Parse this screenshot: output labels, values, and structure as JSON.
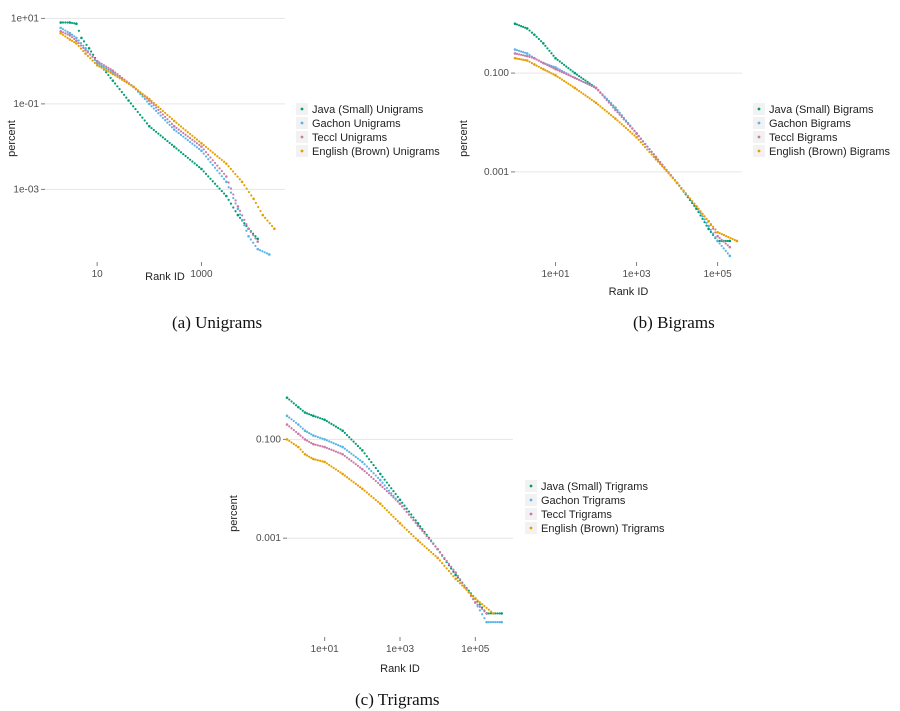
{
  "chart_data": [
    {
      "type": "scatter",
      "caption": "(a) Unigrams",
      "xlabel": "Rank ID",
      "ylabel": "percent",
      "x_scale": "log",
      "y_scale": "log",
      "xlim": [
        1,
        40000
      ],
      "ylim": [
        2e-05,
        12
      ],
      "x_ticks": [
        {
          "v": 10,
          "label": "10"
        },
        {
          "v": 1000,
          "label": "1000"
        }
      ],
      "y_ticks": [
        {
          "v": 10,
          "label": "1e+01"
        },
        {
          "v": 0.1,
          "label": "1e-01"
        },
        {
          "v": 0.001,
          "label": "1e-03"
        }
      ],
      "grid": true,
      "legend_position": "right",
      "series": [
        {
          "name": "Java (Small) Unigrams",
          "color": "#009E73",
          "points": [
            [
              2,
              8
            ],
            [
              3,
              8
            ],
            [
              4,
              7.5
            ],
            [
              5,
              3.5
            ],
            [
              7,
              2
            ],
            [
              10,
              1
            ],
            [
              20,
              0.35
            ],
            [
              40,
              0.12
            ],
            [
              100,
              0.03
            ],
            [
              300,
              0.01
            ],
            [
              1000,
              0.003
            ],
            [
              3000,
              0.0007
            ],
            [
              5000,
              0.00025
            ],
            [
              8000,
              0.00012
            ],
            [
              12000,
              7e-05
            ]
          ]
        },
        {
          "name": "Gachon Unigrams",
          "color": "#56B4E9",
          "points": [
            [
              2,
              6
            ],
            [
              3,
              4.5
            ],
            [
              4,
              3.5
            ],
            [
              6,
              2
            ],
            [
              10,
              0.9
            ],
            [
              20,
              0.55
            ],
            [
              50,
              0.25
            ],
            [
              100,
              0.1
            ],
            [
              300,
              0.025
            ],
            [
              1000,
              0.008
            ],
            [
              3000,
              0.0015
            ],
            [
              5000,
              0.00035
            ],
            [
              8000,
              8e-05
            ],
            [
              12000,
              4e-05
            ],
            [
              20000,
              3e-05
            ]
          ]
        },
        {
          "name": "Teccl Unigrams",
          "color": "#CC79A7",
          "points": [
            [
              2,
              5
            ],
            [
              3,
              4
            ],
            [
              4,
              3
            ],
            [
              6,
              1.8
            ],
            [
              10,
              1
            ],
            [
              20,
              0.6
            ],
            [
              50,
              0.25
            ],
            [
              100,
              0.12
            ],
            [
              300,
              0.03
            ],
            [
              1000,
              0.01
            ],
            [
              3000,
              0.002
            ],
            [
              5000,
              0.0004
            ],
            [
              8000,
              0.00012
            ],
            [
              12000,
              6e-05
            ]
          ]
        },
        {
          "name": "English (Brown) Unigrams",
          "color": "#E69F00",
          "points": [
            [
              2,
              4.5
            ],
            [
              3,
              3.2
            ],
            [
              4,
              2.6
            ],
            [
              6,
              1.5
            ],
            [
              10,
              0.8
            ],
            [
              20,
              0.5
            ],
            [
              50,
              0.25
            ],
            [
              100,
              0.13
            ],
            [
              300,
              0.04
            ],
            [
              1000,
              0.012
            ],
            [
              3000,
              0.004
            ],
            [
              6000,
              0.0015
            ],
            [
              10000,
              0.0006
            ],
            [
              15000,
              0.00025
            ],
            [
              25000,
              0.00012
            ]
          ]
        }
      ]
    },
    {
      "type": "scatter",
      "caption": "(b) Bigrams",
      "xlabel": "Rank ID",
      "ylabel": "percent",
      "x_scale": "log",
      "y_scale": "log",
      "xlim": [
        1,
        400000
      ],
      "ylim": [
        1.5e-05,
        1.5
      ],
      "x_ticks": [
        {
          "v": 10,
          "label": "1e+01"
        },
        {
          "v": 1000,
          "label": "1e+03"
        },
        {
          "v": 100000,
          "label": "1e+05"
        }
      ],
      "y_ticks": [
        {
          "v": 0.1,
          "label": "0.100"
        },
        {
          "v": 0.001,
          "label": "0.001"
        }
      ],
      "grid": true,
      "legend_position": "right",
      "series": [
        {
          "name": "Java (Small) Bigrams",
          "color": "#009E73",
          "points": [
            [
              1,
              1
            ],
            [
              2,
              0.8
            ],
            [
              3,
              0.6
            ],
            [
              5,
              0.4
            ],
            [
              10,
              0.2
            ],
            [
              30,
              0.1
            ],
            [
              100,
              0.05
            ],
            [
              300,
              0.02
            ],
            [
              1000,
              0.006
            ],
            [
              3000,
              0.002
            ],
            [
              10000,
              0.0006
            ],
            [
              30000,
              0.00018
            ],
            [
              60000,
              7e-05
            ],
            [
              100000,
              4e-05
            ],
            [
              200000,
              4e-05
            ]
          ]
        },
        {
          "name": "Gachon Bigrams",
          "color": "#56B4E9",
          "points": [
            [
              1,
              0.3
            ],
            [
              2,
              0.25
            ],
            [
              3,
              0.2
            ],
            [
              5,
              0.16
            ],
            [
              10,
              0.13
            ],
            [
              30,
              0.08
            ],
            [
              100,
              0.05
            ],
            [
              300,
              0.02
            ],
            [
              1000,
              0.006
            ],
            [
              3000,
              0.002
            ],
            [
              10000,
              0.0006
            ],
            [
              30000,
              0.0002
            ],
            [
              60000,
              8e-05
            ],
            [
              100000,
              4e-05
            ],
            [
              200000,
              2e-05
            ]
          ]
        },
        {
          "name": "Teccl Bigrams",
          "color": "#CC79A7",
          "points": [
            [
              1,
              0.25
            ],
            [
              2,
              0.22
            ],
            [
              3,
              0.2
            ],
            [
              5,
              0.16
            ],
            [
              10,
              0.12
            ],
            [
              30,
              0.08
            ],
            [
              100,
              0.05
            ],
            [
              300,
              0.018
            ],
            [
              1000,
              0.006
            ],
            [
              3000,
              0.002
            ],
            [
              10000,
              0.0006
            ],
            [
              30000,
              0.0002
            ],
            [
              60000,
              0.0001
            ],
            [
              100000,
              5e-05
            ],
            [
              200000,
              3e-05
            ]
          ]
        },
        {
          "name": "English (Brown) Bigrams",
          "color": "#E69F00",
          "points": [
            [
              1,
              0.2
            ],
            [
              2,
              0.18
            ],
            [
              3,
              0.15
            ],
            [
              5,
              0.12
            ],
            [
              10,
              0.09
            ],
            [
              30,
              0.05
            ],
            [
              100,
              0.025
            ],
            [
              300,
              0.012
            ],
            [
              1000,
              0.005
            ],
            [
              3000,
              0.0018
            ],
            [
              10000,
              0.0006
            ],
            [
              30000,
              0.0002
            ],
            [
              60000,
              0.0001
            ],
            [
              100000,
              6e-05
            ],
            [
              300000,
              4e-05
            ]
          ]
        }
      ]
    },
    {
      "type": "scatter",
      "caption": "(c) Trigrams",
      "xlabel": "Rank ID",
      "ylabel": "percent",
      "x_scale": "log",
      "y_scale": "log",
      "xlim": [
        1,
        1000000
      ],
      "ylim": [
        1e-05,
        1
      ],
      "x_ticks": [
        {
          "v": 10,
          "label": "1e+01"
        },
        {
          "v": 1000,
          "label": "1e+03"
        },
        {
          "v": 100000,
          "label": "1e+05"
        }
      ],
      "y_ticks": [
        {
          "v": 0.1,
          "label": "0.100"
        },
        {
          "v": 0.001,
          "label": "0.001"
        }
      ],
      "grid": true,
      "legend_position": "right",
      "series": [
        {
          "name": "Java (Small) Trigrams",
          "color": "#009E73",
          "points": [
            [
              1,
              0.7
            ],
            [
              2,
              0.45
            ],
            [
              3,
              0.35
            ],
            [
              5,
              0.3
            ],
            [
              10,
              0.25
            ],
            [
              30,
              0.15
            ],
            [
              100,
              0.06
            ],
            [
              300,
              0.02
            ],
            [
              1000,
              0.006
            ],
            [
              3000,
              0.002
            ],
            [
              10000,
              0.0006
            ],
            [
              30000,
              0.00018
            ],
            [
              100000,
              6e-05
            ],
            [
              200000,
              3e-05
            ],
            [
              500000,
              3e-05
            ]
          ]
        },
        {
          "name": "Gachon Trigrams",
          "color": "#56B4E9",
          "points": [
            [
              1,
              0.3
            ],
            [
              2,
              0.2
            ],
            [
              3,
              0.15
            ],
            [
              5,
              0.12
            ],
            [
              10,
              0.1
            ],
            [
              30,
              0.07
            ],
            [
              100,
              0.035
            ],
            [
              300,
              0.015
            ],
            [
              1000,
              0.005
            ],
            [
              3000,
              0.0018
            ],
            [
              10000,
              0.0006
            ],
            [
              30000,
              0.0002
            ],
            [
              100000,
              5e-05
            ],
            [
              200000,
              2e-05
            ],
            [
              500000,
              2e-05
            ]
          ]
        },
        {
          "name": "Teccl Trigrams",
          "color": "#CC79A7",
          "points": [
            [
              1,
              0.2
            ],
            [
              2,
              0.13
            ],
            [
              3,
              0.1
            ],
            [
              5,
              0.08
            ],
            [
              10,
              0.07
            ],
            [
              30,
              0.05
            ],
            [
              100,
              0.025
            ],
            [
              300,
              0.012
            ],
            [
              1000,
              0.005
            ],
            [
              3000,
              0.0018
            ],
            [
              10000,
              0.0006
            ],
            [
              30000,
              0.0002
            ],
            [
              100000,
              5e-05
            ],
            [
              200000,
              3e-05
            ]
          ]
        },
        {
          "name": "English (Brown) Trigrams",
          "color": "#E69F00",
          "points": [
            [
              1,
              0.1
            ],
            [
              2,
              0.07
            ],
            [
              3,
              0.05
            ],
            [
              5,
              0.04
            ],
            [
              10,
              0.035
            ],
            [
              30,
              0.02
            ],
            [
              100,
              0.01
            ],
            [
              300,
              0.005
            ],
            [
              1000,
              0.002
            ],
            [
              3000,
              0.0009
            ],
            [
              10000,
              0.0004
            ],
            [
              30000,
              0.00015
            ],
            [
              100000,
              6e-05
            ],
            [
              300000,
              3e-05
            ]
          ]
        }
      ]
    }
  ]
}
